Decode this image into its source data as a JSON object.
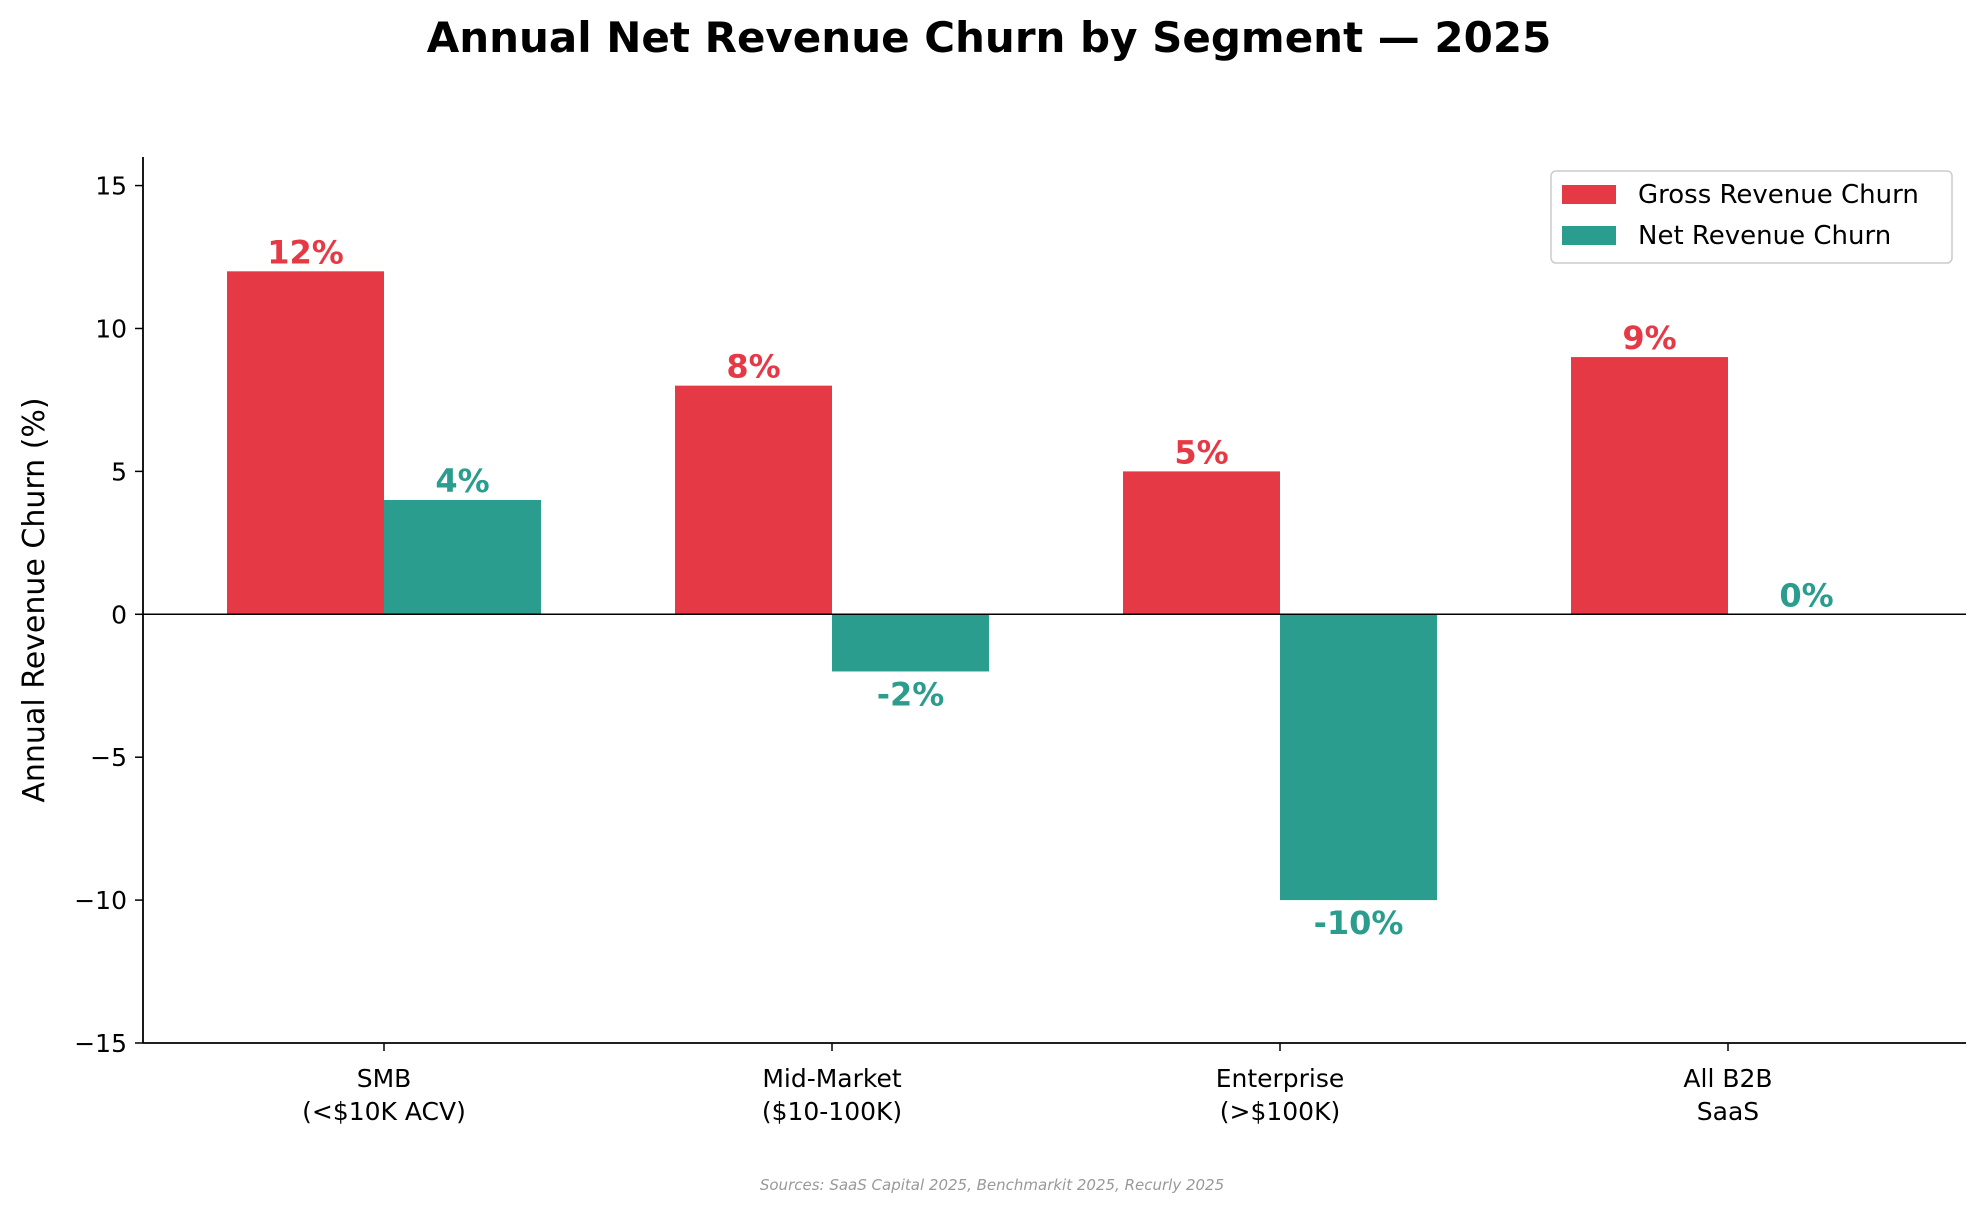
{
  "chart_data": {
    "type": "bar",
    "title": "Annual Net Revenue Churn by Segment — 2025",
    "xlabel": "",
    "ylabel": "Annual Revenue Churn (%)",
    "ylim": [
      -15,
      16
    ],
    "yticks": [
      15,
      10,
      5,
      0,
      -5,
      -10,
      -15
    ],
    "ytick_labels": [
      "15",
      "10",
      "5",
      "0",
      "−5",
      "−10",
      "−15"
    ],
    "categories": [
      [
        "SMB",
        "(<$10K ACV)"
      ],
      [
        "Mid-Market",
        "($10-100K)"
      ],
      [
        "Enterprise",
        "(>$100K)"
      ],
      [
        "All B2B",
        "SaaS"
      ]
    ],
    "series": [
      {
        "name": "Gross Revenue Churn",
        "color": "#e63946",
        "values": [
          12,
          8,
          5,
          9
        ],
        "labels": [
          "12%",
          "8%",
          "5%",
          "9%"
        ]
      },
      {
        "name": "Net Revenue Churn",
        "color": "#2a9d8f",
        "values": [
          4,
          -2,
          -10,
          0
        ],
        "labels": [
          "4%",
          "-2%",
          "-10%",
          "0%"
        ]
      }
    ],
    "legend_position": "top-right",
    "grid": false,
    "source_note": "Sources: SaaS Capital 2025, Benchmarkit 2025, Recurly 2025"
  }
}
